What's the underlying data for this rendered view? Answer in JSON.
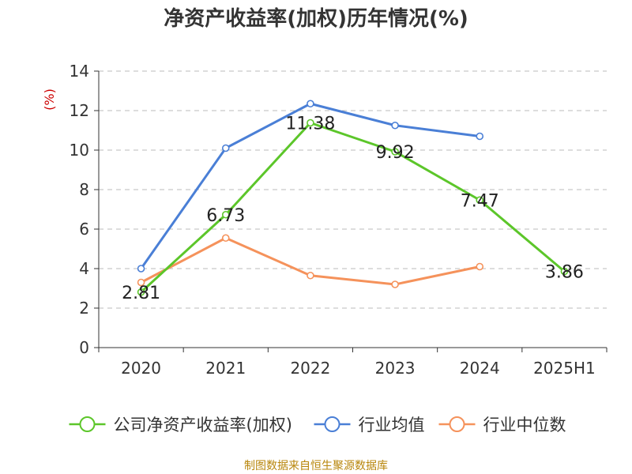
{
  "chart_data": {
    "type": "line",
    "title": "净资产收益率(加权)历年情况(%)",
    "ylabel": "(%)",
    "ylim": [
      0,
      14
    ],
    "yticks": [
      0,
      2,
      4,
      6,
      8,
      10,
      12,
      14
    ],
    "grid": true,
    "legend_position": "bottom",
    "categories": [
      "2020",
      "2021",
      "2022",
      "2023",
      "2024",
      "2025H1"
    ],
    "series": [
      {
        "name": "公司净资产收益率(加权)",
        "color": "#5cc62a",
        "values": [
          2.81,
          6.73,
          11.38,
          9.92,
          7.47,
          3.86
        ],
        "labels": [
          "2.81",
          "6.73",
          "11.38",
          "9.92",
          "7.47",
          "3.86"
        ]
      },
      {
        "name": "行业均值",
        "color": "#4a7fd6",
        "values": [
          4.0,
          10.1,
          12.35,
          11.25,
          10.7,
          null
        ]
      },
      {
        "name": "行业中位数",
        "color": "#f5925b",
        "values": [
          3.3,
          5.55,
          3.65,
          3.2,
          4.1,
          null
        ]
      }
    ],
    "source": "制图数据来自恒生聚源数据库"
  }
}
